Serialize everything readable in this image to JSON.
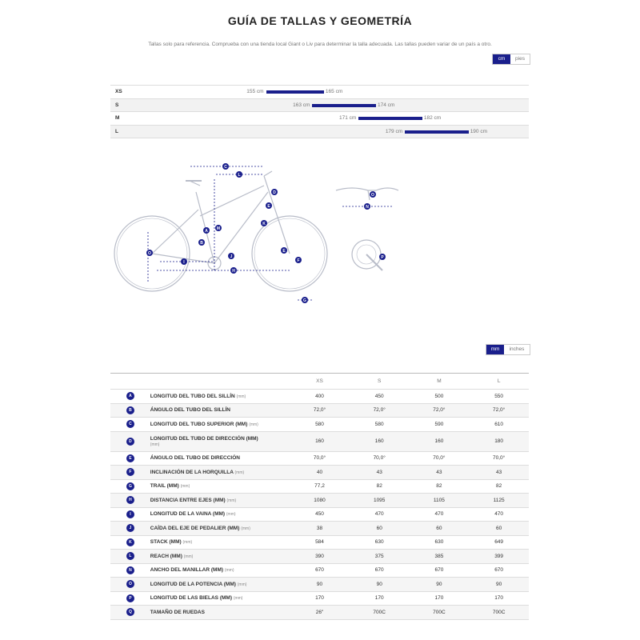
{
  "page": {
    "title": "GUÍA DE TALLAS Y GEOMETRÍA",
    "subtitle": "Tallas solo para referencia. Comprueba con una tienda local Giant o Liv para determinar la talla adecuada. Las tallas pueden variar de un país a otro."
  },
  "size_units": {
    "active": "cm",
    "inactive": "pies"
  },
  "size_chart": [
    {
      "size": "XS",
      "min": "155 cm",
      "max": "165 cm",
      "min_value": 155,
      "max_value": 165
    },
    {
      "size": "S",
      "min": "163 cm",
      "max": "174 cm",
      "min_value": 163,
      "max_value": 174
    },
    {
      "size": "M",
      "min": "171 cm",
      "max": "182 cm",
      "min_value": 171,
      "max_value": 182
    },
    {
      "size": "L",
      "min": "179 cm",
      "max": "190 cm",
      "min_value": 179,
      "max_value": 190
    }
  ],
  "geometry_units": {
    "active": "mm",
    "inactive": "inches"
  },
  "geometry": {
    "columns": [
      "XS",
      "S",
      "M",
      "L"
    ],
    "rows": [
      {
        "key": "A",
        "label": "LONGITUD DEL TUBO DEL SILLÍN",
        "unit": "(mm)",
        "values": [
          "400",
          "450",
          "500",
          "550"
        ]
      },
      {
        "key": "B",
        "label": "ÁNGULO DEL TUBO DEL SILLÍN",
        "unit": "",
        "values": [
          "72,0°",
          "72,0°",
          "72,0°",
          "72,0°"
        ]
      },
      {
        "key": "C",
        "label": "LONGITUD DEL TUBO SUPERIOR (MM)",
        "unit": "(mm)",
        "values": [
          "580",
          "580",
          "590",
          "610"
        ]
      },
      {
        "key": "D",
        "label": "LONGITUD DEL TUBO DE DIRECCIÓN (MM)",
        "unit": "(mm)",
        "values": [
          "160",
          "160",
          "160",
          "180"
        ]
      },
      {
        "key": "E",
        "label": "ÁNGULO DEL TUBO DE DIRECCIÓN",
        "unit": "",
        "values": [
          "70,0°",
          "70,0°",
          "70,0°",
          "70,0°"
        ]
      },
      {
        "key": "F",
        "label": "INCLINACIÓN DE LA HORQUILLA",
        "unit": "(mm)",
        "values": [
          "40",
          "43",
          "43",
          "43"
        ]
      },
      {
        "key": "G",
        "label": "TRAIL (MM)",
        "unit": "(mm)",
        "values": [
          "77,2",
          "82",
          "82",
          "82"
        ]
      },
      {
        "key": "H",
        "label": "DISTANCIA ENTRE EJES (MM)",
        "unit": "(mm)",
        "values": [
          "1080",
          "1095",
          "1105",
          "1125"
        ]
      },
      {
        "key": "I",
        "label": "LONGITUD DE LA VAINA (MM)",
        "unit": "(mm)",
        "values": [
          "450",
          "470",
          "470",
          "470"
        ]
      },
      {
        "key": "J",
        "label": "CAÍDA DEL EJE DE PEDALIER (MM)",
        "unit": "(mm)",
        "values": [
          "38",
          "60",
          "60",
          "60"
        ]
      },
      {
        "key": "K",
        "label": "STACK (MM)",
        "unit": "(mm)",
        "values": [
          "584",
          "630",
          "630",
          "649"
        ]
      },
      {
        "key": "L",
        "label": "REACH (MM)",
        "unit": "(mm)",
        "values": [
          "390",
          "375",
          "385",
          "399"
        ]
      },
      {
        "key": "N",
        "label": "ANCHO DEL MANILLAR (MM)",
        "unit": "(mm)",
        "values": [
          "670",
          "670",
          "670",
          "670"
        ]
      },
      {
        "key": "O",
        "label": "LONGITUD DE LA POTENCIA (MM)",
        "unit": "(mm)",
        "values": [
          "90",
          "90",
          "90",
          "90"
        ]
      },
      {
        "key": "P",
        "label": "LONGITUD DE LAS BIELAS (MM)",
        "unit": "(mm)",
        "values": [
          "170",
          "170",
          "170",
          "170"
        ]
      },
      {
        "key": "Q",
        "label": "TAMAÑO DE RUEDAS",
        "unit": "",
        "values": [
          "26\"",
          "700C",
          "700C",
          "700C"
        ]
      }
    ]
  },
  "diagram_labels": [
    "A",
    "B",
    "C",
    "D",
    "E",
    "F",
    "G",
    "H",
    "I",
    "J",
    "K",
    "L",
    "M",
    "N",
    "O",
    "P"
  ],
  "colors": {
    "accent": "#1a1f8c",
    "frame": "#b8bcc8",
    "text": "#333333"
  }
}
